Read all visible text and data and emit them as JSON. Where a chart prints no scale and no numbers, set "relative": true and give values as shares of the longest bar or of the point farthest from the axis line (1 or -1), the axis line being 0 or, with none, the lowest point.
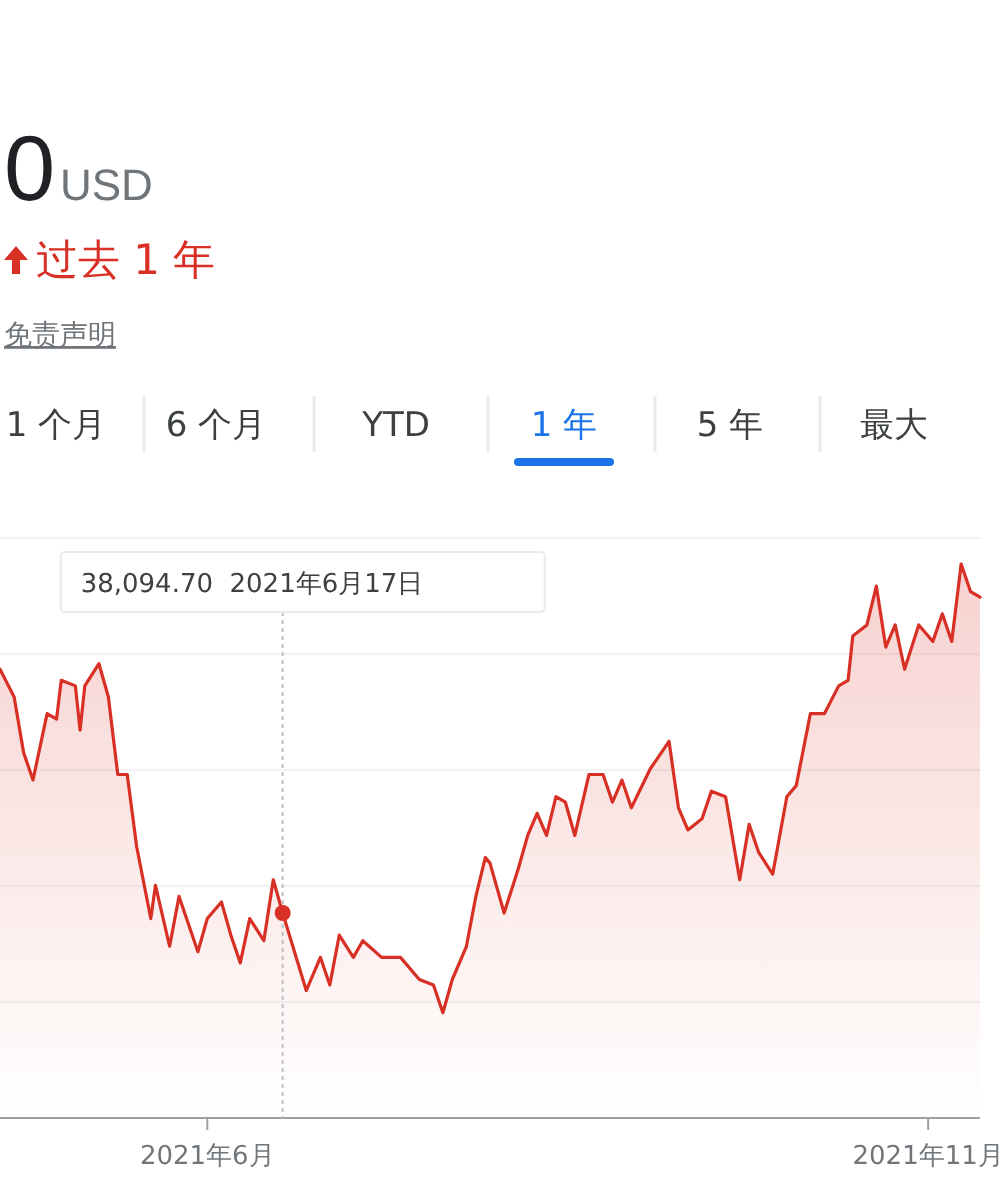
{
  "chart_data": {
    "type": "area",
    "title": "0",
    "relative": true,
    "color": "#d93025",
    "grid": true,
    "marker": "none",
    "x": [
      "2021-04-18",
      "2021-04-21",
      "2021-04-23",
      "2021-04-25",
      "2021-04-28",
      "2021-04-30",
      "2021-05-01",
      "2021-05-04",
      "2021-05-05",
      "2021-05-06",
      "2021-05-09",
      "2021-05-11",
      "2021-05-13",
      "2021-05-15",
      "2021-05-17",
      "2021-05-20",
      "2021-05-21",
      "2021-05-24",
      "2021-05-26",
      "2021-05-30",
      "2021-06-01",
      "2021-06-04",
      "2021-06-06",
      "2021-06-08",
      "2021-06-10",
      "2021-06-13",
      "2021-06-15",
      "2021-06-17",
      "2021-06-22",
      "2021-06-25",
      "2021-06-27",
      "2021-06-29",
      "2021-07-02",
      "2021-07-04",
      "2021-07-08",
      "2021-07-12",
      "2021-07-16",
      "2021-07-19",
      "2021-07-21",
      "2021-07-23",
      "2021-07-26",
      "2021-07-28",
      "2021-07-30",
      "2021-07-31",
      "2021-08-03",
      "2021-08-06",
      "2021-08-08",
      "2021-08-10",
      "2021-08-12",
      "2021-08-14",
      "2021-08-16",
      "2021-08-18",
      "2021-08-21",
      "2021-08-24",
      "2021-08-26",
      "2021-08-28",
      "2021-08-30",
      "2021-09-03",
      "2021-09-07",
      "2021-09-09",
      "2021-09-11",
      "2021-09-14",
      "2021-09-16",
      "2021-09-19",
      "2021-09-22",
      "2021-09-24",
      "2021-09-26",
      "2021-09-29",
      "2021-10-02",
      "2021-10-04",
      "2021-10-07",
      "2021-10-10",
      "2021-10-13",
      "2021-10-15",
      "2021-10-16",
      "2021-10-19",
      "2021-10-21",
      "2021-10-23",
      "2021-10-25",
      "2021-10-27",
      "2021-10-30",
      "2021-11-02",
      "2021-11-04",
      "2021-11-06",
      "2021-11-08",
      "2021-11-10",
      "2021-11-12"
    ],
    "values": [
      0.81,
      0.76,
      0.66,
      0.61,
      0.73,
      0.72,
      0.79,
      0.78,
      0.7,
      0.78,
      0.82,
      0.76,
      0.62,
      0.62,
      0.49,
      0.36,
      0.42,
      0.31,
      0.4,
      0.3,
      0.36,
      0.39,
      0.33,
      0.28,
      0.36,
      0.32,
      0.43,
      0.37,
      0.23,
      0.29,
      0.24,
      0.33,
      0.29,
      0.32,
      0.29,
      0.29,
      0.25,
      0.24,
      0.19,
      0.25,
      0.31,
      0.4,
      0.47,
      0.46,
      0.37,
      0.45,
      0.51,
      0.55,
      0.51,
      0.58,
      0.57,
      0.51,
      0.62,
      0.62,
      0.57,
      0.61,
      0.56,
      0.63,
      0.68,
      0.56,
      0.52,
      0.54,
      0.59,
      0.58,
      0.43,
      0.53,
      0.48,
      0.44,
      0.58,
      0.6,
      0.73,
      0.73,
      0.78,
      0.79,
      0.87,
      0.89,
      0.96,
      0.85,
      0.89,
      0.81,
      0.89,
      0.86,
      0.91,
      0.86,
      1,
      0.95,
      0.94
    ],
    "xlim": [
      "2021-04-18",
      "2021-11-12"
    ],
    "xticks": [
      {
        "value": "2021-06-01",
        "label": "2021年6月"
      },
      {
        "value": "2021-11-01",
        "label": "2021年11月"
      }
    ],
    "ref_lines": [
      {
        "axis": "x",
        "value": "2021-06-17",
        "label": "38,094.70  2021年6月17日",
        "color": "#bdc1c6",
        "line_style": "dotted"
      }
    ],
    "annotations": [
      "USD",
      "过去 1 年",
      "免责声明",
      "1 个月",
      "6 个月",
      "YTD",
      "1 年",
      "5 年",
      "最大"
    ]
  }
}
